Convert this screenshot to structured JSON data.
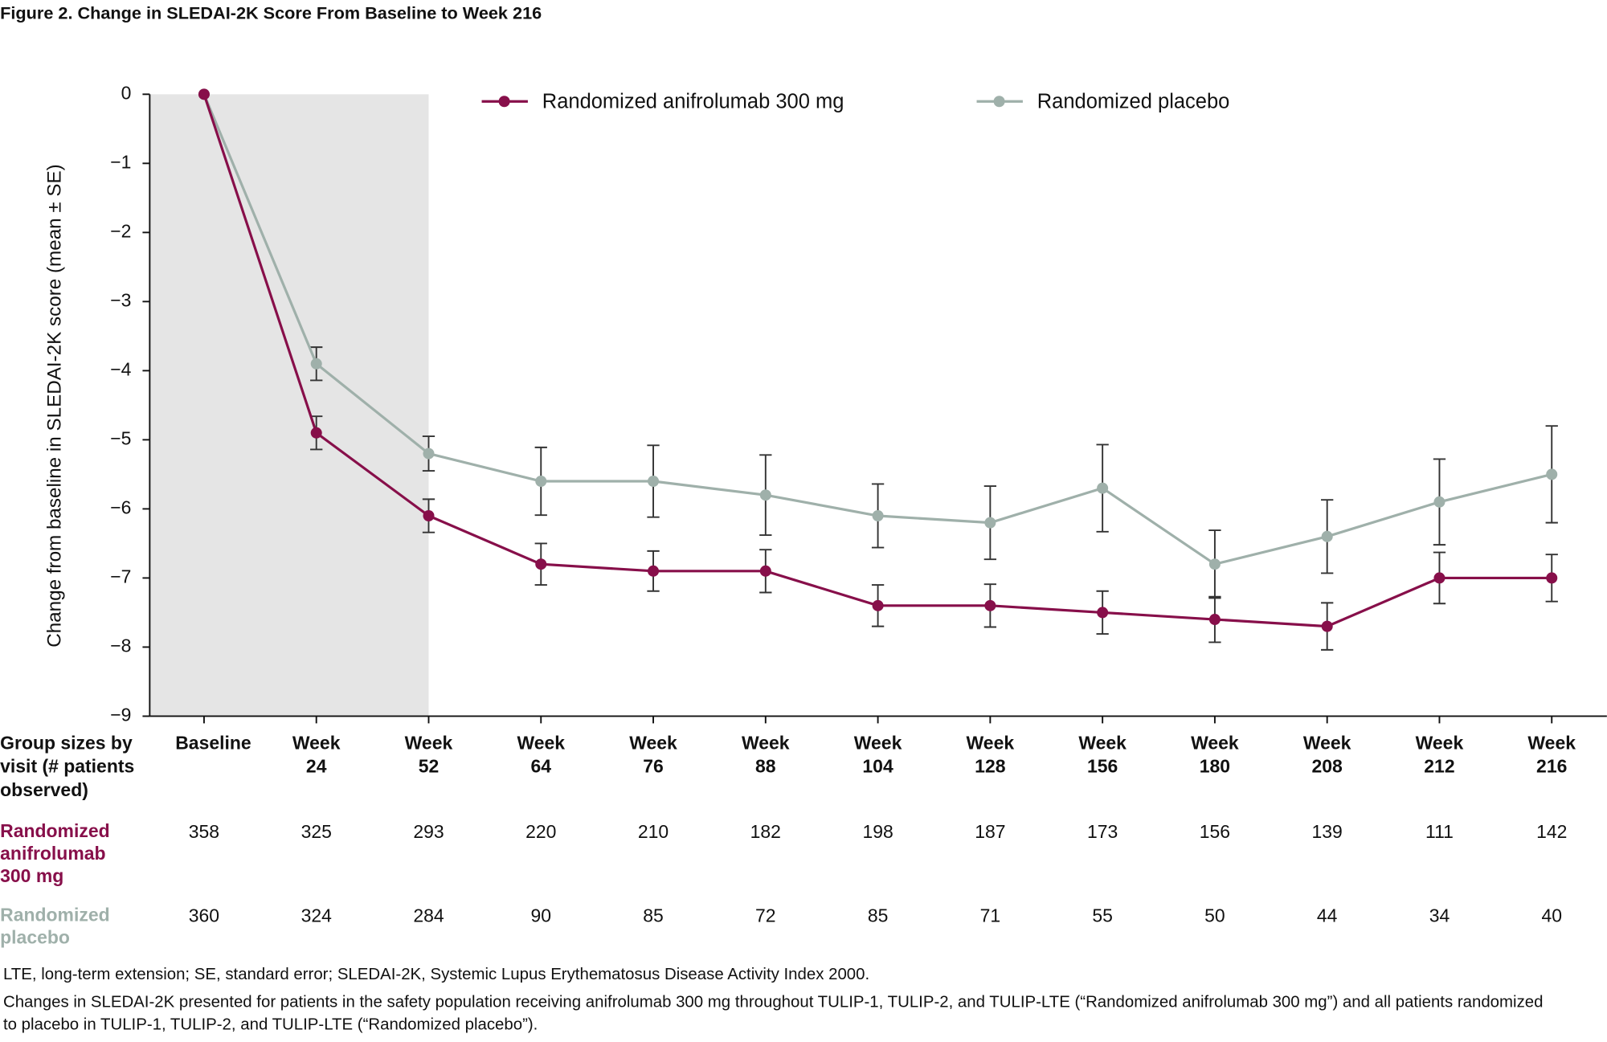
{
  "chart_data": {
    "type": "line",
    "title": "Figure 2. Change in SLEDAI-2K Score From Baseline to Week 216",
    "y_label": "Change from baseline in SLEDAI-2K score (mean ± SE)",
    "categories": [
      "Baseline",
      "Week 24",
      "Week 52",
      "Week 64",
      "Week 76",
      "Week 88",
      "Week 104",
      "Week 128",
      "Week 156",
      "Week 180",
      "Week 208",
      "Week 212",
      "Week 216"
    ],
    "series": [
      {
        "name": "Randomized anifrolumab 300 mg",
        "color": "#870f4a",
        "values": [
          0,
          -4.9,
          -6.1,
          -6.8,
          -6.9,
          -6.9,
          -7.4,
          -7.4,
          -7.5,
          -7.6,
          -7.7,
          -7.0,
          -7.0
        ],
        "errors": [
          null,
          0.24,
          0.24,
          0.3,
          0.29,
          0.31,
          0.3,
          0.31,
          0.31,
          0.33,
          0.34,
          0.37,
          0.34
        ]
      },
      {
        "name": "Randomized placebo",
        "color": "#9fb0aa",
        "values": [
          0,
          -3.9,
          -5.2,
          -5.6,
          -5.6,
          -5.8,
          -6.1,
          -6.2,
          -5.7,
          -6.8,
          -6.4,
          -5.9,
          -5.5
        ],
        "errors": [
          null,
          0.24,
          0.25,
          0.49,
          0.52,
          0.58,
          0.46,
          0.53,
          0.63,
          0.49,
          0.53,
          0.62,
          0.7
        ]
      }
    ],
    "ylim": [
      -9,
      0
    ],
    "yticks": [
      0,
      {
        "value": -1,
        "label": "−1"
      },
      {
        "value": -2,
        "label": "−2"
      },
      {
        "value": -3,
        "label": "−3"
      },
      {
        "value": -4,
        "label": "−4"
      },
      {
        "value": -5,
        "label": "−5"
      },
      {
        "value": -6,
        "label": "−6"
      },
      {
        "value": -7,
        "label": "−7"
      },
      {
        "value": -8,
        "label": "−8"
      },
      {
        "value": -9,
        "label": "−9"
      }
    ],
    "grid": false,
    "legend": "top",
    "shade_through_category": 2,
    "shade_color": "#e5e5e5",
    "group_sizes": {
      "header": "Group sizes by visit (# patients observed)",
      "rows": [
        {
          "label": "Randomized anifrolumab 300 mg",
          "color": "#870f4a",
          "values": [
            358,
            325,
            293,
            220,
            210,
            182,
            198,
            187,
            173,
            156,
            139,
            111,
            142
          ]
        },
        {
          "label": "Randomized placebo",
          "color": "#9fb0aa",
          "values": [
            360,
            324,
            284,
            90,
            85,
            72,
            85,
            71,
            55,
            50,
            44,
            34,
            40
          ]
        }
      ]
    },
    "footnotes": [
      "LTE, long-term extension; SE, standard error; SLEDAI-2K, Systemic Lupus Erythematosus Disease Activity Index 2000.",
      "Changes in SLEDAI-2K presented for patients in the safety population receiving anifrolumab 300 mg throughout TULIP-1, TULIP-2, and TULIP-LTE (“Randomized anifrolumab 300 mg”) and all patients randomized to placebo in TULIP-1, TULIP-2, and TULIP-LTE (“Randomized placebo”)."
    ]
  }
}
